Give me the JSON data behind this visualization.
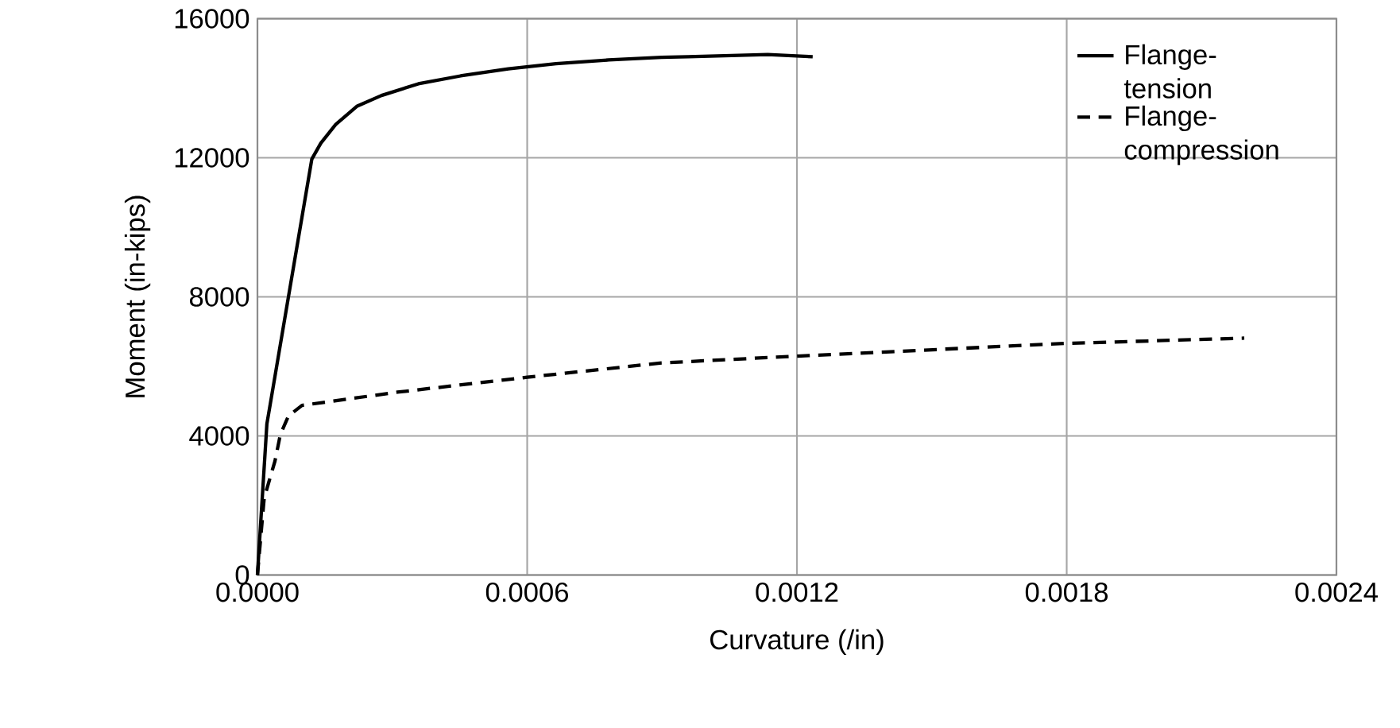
{
  "chart_data": {
    "type": "line",
    "xlabel": "Curvature (/in)",
    "ylabel": "Moment (in-kips)",
    "xlim": [
      0,
      0.0024
    ],
    "ylim": [
      0,
      16000
    ],
    "xticks": [
      {
        "value": 0,
        "label": "0.0000"
      },
      {
        "value": 0.0006,
        "label": "0.0006"
      },
      {
        "value": 0.0012,
        "label": "0.0012"
      },
      {
        "value": 0.0018,
        "label": "0.0018"
      },
      {
        "value": 0.0024,
        "label": "0.0024"
      }
    ],
    "yticks": [
      0,
      4000,
      8000,
      12000,
      16000
    ],
    "grid": true,
    "legend": "top right",
    "marker": "none",
    "series": [
      {
        "name": "Flange-tension",
        "color": "#000000",
        "line_style": "solid",
        "x": [
          0,
          2.1e-05,
          6.9e-05,
          0.000121,
          0.000141,
          0.000174,
          0.000222,
          0.000276,
          0.000358,
          0.000452,
          0.000558,
          0.000664,
          0.000781,
          0.000899,
          0.000958,
          0.001135,
          0.001235
        ],
        "values": [
          0,
          4343,
          8000,
          11963,
          12420,
          12955,
          13486,
          13790,
          14126,
          14354,
          14556,
          14706,
          14811,
          14889,
          14903,
          14967,
          14903
        ]
      },
      {
        "name": "Flange-compression",
        "color": "#000000",
        "line_style": "dashed",
        "x": [
          0,
          1.5e-05,
          3.9e-05,
          5.1e-05,
          6.9e-05,
          9.9e-05,
          0.000311,
          0.0006,
          0.000899,
          0.0012,
          0.0018,
          0.002195
        ],
        "values": [
          0,
          2213,
          3278,
          4041,
          4571,
          4878,
          5257,
          5687,
          6098,
          6295,
          6661,
          6811
        ]
      }
    ]
  }
}
